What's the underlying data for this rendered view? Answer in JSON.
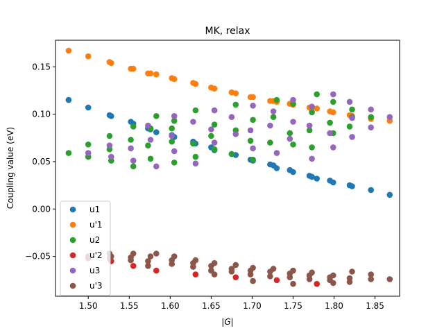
{
  "chart_data": {
    "type": "scatter",
    "title": "MK, relax",
    "xlabel": "|G|",
    "ylabel": "Coupling value (eV)",
    "xlim": [
      1.46,
      1.88
    ],
    "ylim": [
      -0.092,
      0.178
    ],
    "xticks": [
      "1.50",
      "1.55",
      "1.60",
      "1.65",
      "1.70",
      "1.75",
      "1.80",
      "1.85"
    ],
    "xtick_values": [
      1.5,
      1.55,
      1.6,
      1.65,
      1.7,
      1.75,
      1.8,
      1.85
    ],
    "yticks": [
      "−0.05",
      "0.00",
      "0.05",
      "0.10",
      "0.15"
    ],
    "ytick_values": [
      -0.05,
      0.0,
      0.05,
      0.1,
      0.15
    ],
    "grid": false,
    "legend_position": "lower-left",
    "series": [
      {
        "name": "u1",
        "color": "#1f77b4",
        "points": [
          [
            1.476,
            0.115
          ],
          [
            1.5,
            0.107
          ],
          [
            1.526,
            0.099
          ],
          [
            1.528,
            0.098
          ],
          [
            1.552,
            0.092
          ],
          [
            1.555,
            0.09
          ],
          [
            1.573,
            0.085
          ],
          [
            1.576,
            0.084
          ],
          [
            1.583,
            0.081
          ],
          [
            1.602,
            0.078
          ],
          [
            1.605,
            0.076
          ],
          [
            1.628,
            0.071
          ],
          [
            1.631,
            0.069
          ],
          [
            1.65,
            0.065
          ],
          [
            1.654,
            0.062
          ],
          [
            1.675,
            0.058
          ],
          [
            1.68,
            0.057
          ],
          [
            1.698,
            0.052
          ],
          [
            1.701,
            0.051
          ],
          [
            1.722,
            0.047
          ],
          [
            1.726,
            0.046
          ],
          [
            1.73,
            0.043
          ],
          [
            1.746,
            0.041
          ],
          [
            1.75,
            0.039
          ],
          [
            1.77,
            0.035
          ],
          [
            1.773,
            0.034
          ],
          [
            1.779,
            0.032
          ],
          [
            1.795,
            0.03
          ],
          [
            1.799,
            0.028
          ],
          [
            1.819,
            0.025
          ],
          [
            1.822,
            0.024
          ],
          [
            1.845,
            0.02
          ],
          [
            1.868,
            0.015
          ]
        ]
      },
      {
        "name": "u'1",
        "color": "#ff7f0e",
        "points": [
          [
            1.476,
            0.167
          ],
          [
            1.5,
            0.161
          ],
          [
            1.526,
            0.155
          ],
          [
            1.528,
            0.154
          ],
          [
            1.552,
            0.148
          ],
          [
            1.555,
            0.148
          ],
          [
            1.573,
            0.143
          ],
          [
            1.576,
            0.143
          ],
          [
            1.583,
            0.142
          ],
          [
            1.602,
            0.138
          ],
          [
            1.605,
            0.137
          ],
          [
            1.628,
            0.133
          ],
          [
            1.631,
            0.132
          ],
          [
            1.65,
            0.128
          ],
          [
            1.654,
            0.127
          ],
          [
            1.675,
            0.123
          ],
          [
            1.68,
            0.122
          ],
          [
            1.698,
            0.118
          ],
          [
            1.701,
            0.118
          ],
          [
            1.722,
            0.114
          ],
          [
            1.726,
            0.114
          ],
          [
            1.73,
            0.113
          ],
          [
            1.746,
            0.111
          ],
          [
            1.75,
            0.11
          ],
          [
            1.77,
            0.107
          ],
          [
            1.773,
            0.106
          ],
          [
            1.779,
            0.106
          ],
          [
            1.795,
            0.103
          ],
          [
            1.799,
            0.102
          ],
          [
            1.819,
            0.099
          ],
          [
            1.822,
            0.098
          ],
          [
            1.845,
            0.095
          ],
          [
            1.868,
            0.093
          ]
        ]
      },
      {
        "name": "u2",
        "color": "#2ca02c",
        "points": [
          [
            1.476,
            0.059
          ],
          [
            1.5,
            0.068
          ],
          [
            1.5,
            0.055
          ],
          [
            1.526,
            0.077
          ],
          [
            1.526,
            0.063
          ],
          [
            1.528,
            0.051
          ],
          [
            1.552,
            0.073
          ],
          [
            1.555,
            0.087
          ],
          [
            1.555,
            0.045
          ],
          [
            1.573,
            0.067
          ],
          [
            1.576,
            0.085
          ],
          [
            1.576,
            0.053
          ],
          [
            1.583,
            0.098
          ],
          [
            1.602,
            0.071
          ],
          [
            1.602,
            0.085
          ],
          [
            1.605,
            0.049
          ],
          [
            1.605,
            0.093
          ],
          [
            1.628,
            0.069
          ],
          [
            1.631,
            0.104
          ],
          [
            1.631,
            0.055
          ],
          [
            1.65,
            0.077
          ],
          [
            1.654,
            0.089
          ],
          [
            1.654,
            0.063
          ],
          [
            1.675,
            0.058
          ],
          [
            1.68,
            0.083
          ],
          [
            1.68,
            0.11
          ],
          [
            1.698,
            0.072
          ],
          [
            1.701,
            0.094
          ],
          [
            1.701,
            0.052
          ],
          [
            1.722,
            0.07
          ],
          [
            1.726,
            0.097
          ],
          [
            1.73,
            0.115
          ],
          [
            1.746,
            0.08
          ],
          [
            1.75,
            0.068
          ],
          [
            1.75,
            0.111
          ],
          [
            1.77,
            0.083
          ],
          [
            1.773,
            0.102
          ],
          [
            1.773,
            0.065
          ],
          [
            1.779,
            0.121
          ],
          [
            1.795,
            0.091
          ],
          [
            1.799,
            0.08
          ],
          [
            1.799,
            0.113
          ],
          [
            1.819,
            0.087
          ],
          [
            1.822,
            0.097
          ],
          [
            1.822,
            0.105
          ],
          [
            1.845,
            0.097
          ]
        ]
      },
      {
        "name": "u'2",
        "color": "#d62728",
        "points": [
          [
            1.5,
            -0.05
          ],
          [
            1.528,
            -0.055
          ],
          [
            1.555,
            -0.06
          ],
          [
            1.583,
            -0.065
          ],
          [
            1.631,
            -0.069
          ],
          [
            1.68,
            -0.072
          ],
          [
            1.73,
            -0.075
          ],
          [
            1.779,
            -0.079
          ]
        ]
      },
      {
        "name": "u3",
        "color": "#9467bd",
        "points": [
          [
            1.5,
            0.059
          ],
          [
            1.526,
            0.067
          ],
          [
            1.528,
            0.055
          ],
          [
            1.552,
            0.064
          ],
          [
            1.555,
            0.051
          ],
          [
            1.573,
            0.088
          ],
          [
            1.576,
            0.073
          ],
          [
            1.583,
            0.045
          ],
          [
            1.602,
            0.077
          ],
          [
            1.605,
            0.098
          ],
          [
            1.605,
            0.061
          ],
          [
            1.628,
            0.092
          ],
          [
            1.631,
            0.048
          ],
          [
            1.65,
            0.084
          ],
          [
            1.654,
            0.104
          ],
          [
            1.654,
            0.07
          ],
          [
            1.675,
            0.097
          ],
          [
            1.68,
            0.079
          ],
          [
            1.698,
            0.083
          ],
          [
            1.701,
            0.064
          ],
          [
            1.701,
            0.109
          ],
          [
            1.722,
            0.088
          ],
          [
            1.726,
            0.103
          ],
          [
            1.73,
            0.059
          ],
          [
            1.746,
            0.074
          ],
          [
            1.75,
            0.092
          ],
          [
            1.75,
            0.115
          ],
          [
            1.77,
            0.088
          ],
          [
            1.773,
            0.108
          ],
          [
            1.773,
            0.053
          ],
          [
            1.795,
            0.08
          ],
          [
            1.799,
            0.121
          ],
          [
            1.799,
            0.065
          ],
          [
            1.819,
            0.113
          ],
          [
            1.822,
            0.096
          ],
          [
            1.822,
            0.076
          ],
          [
            1.845,
            0.105
          ],
          [
            1.845,
            0.086
          ],
          [
            1.868,
            0.097
          ]
        ]
      },
      {
        "name": "u'3",
        "color": "#8c564b",
        "points": [
          [
            1.5,
            -0.052
          ],
          [
            1.526,
            -0.047
          ],
          [
            1.526,
            -0.052
          ],
          [
            1.528,
            -0.05
          ],
          [
            1.552,
            -0.051
          ],
          [
            1.552,
            -0.054
          ],
          [
            1.555,
            -0.047
          ],
          [
            1.573,
            -0.055
          ],
          [
            1.573,
            -0.06
          ],
          [
            1.576,
            -0.05
          ],
          [
            1.583,
            -0.047
          ],
          [
            1.602,
            -0.054
          ],
          [
            1.602,
            -0.058
          ],
          [
            1.605,
            -0.05
          ],
          [
            1.628,
            -0.057
          ],
          [
            1.628,
            -0.061
          ],
          [
            1.631,
            -0.054
          ],
          [
            1.65,
            -0.06
          ],
          [
            1.65,
            -0.065
          ],
          [
            1.654,
            -0.057
          ],
          [
            1.654,
            -0.069
          ],
          [
            1.675,
            -0.063
          ],
          [
            1.675,
            -0.066
          ],
          [
            1.68,
            -0.059
          ],
          [
            1.698,
            -0.065
          ],
          [
            1.698,
            -0.069
          ],
          [
            1.701,
            -0.062
          ],
          [
            1.701,
            -0.076
          ],
          [
            1.722,
            -0.066
          ],
          [
            1.722,
            -0.071
          ],
          [
            1.726,
            -0.063
          ],
          [
            1.746,
            -0.068
          ],
          [
            1.746,
            -0.072
          ],
          [
            1.75,
            -0.065
          ],
          [
            1.75,
            -0.079
          ],
          [
            1.77,
            -0.07
          ],
          [
            1.77,
            -0.074
          ],
          [
            1.773,
            -0.067
          ],
          [
            1.795,
            -0.072
          ],
          [
            1.795,
            -0.075
          ],
          [
            1.799,
            -0.07
          ],
          [
            1.799,
            -0.078
          ],
          [
            1.819,
            -0.073
          ],
          [
            1.819,
            -0.077
          ],
          [
            1.822,
            -0.066
          ],
          [
            1.845,
            -0.074
          ],
          [
            1.845,
            -0.069
          ],
          [
            1.868,
            -0.074
          ]
        ]
      }
    ]
  }
}
